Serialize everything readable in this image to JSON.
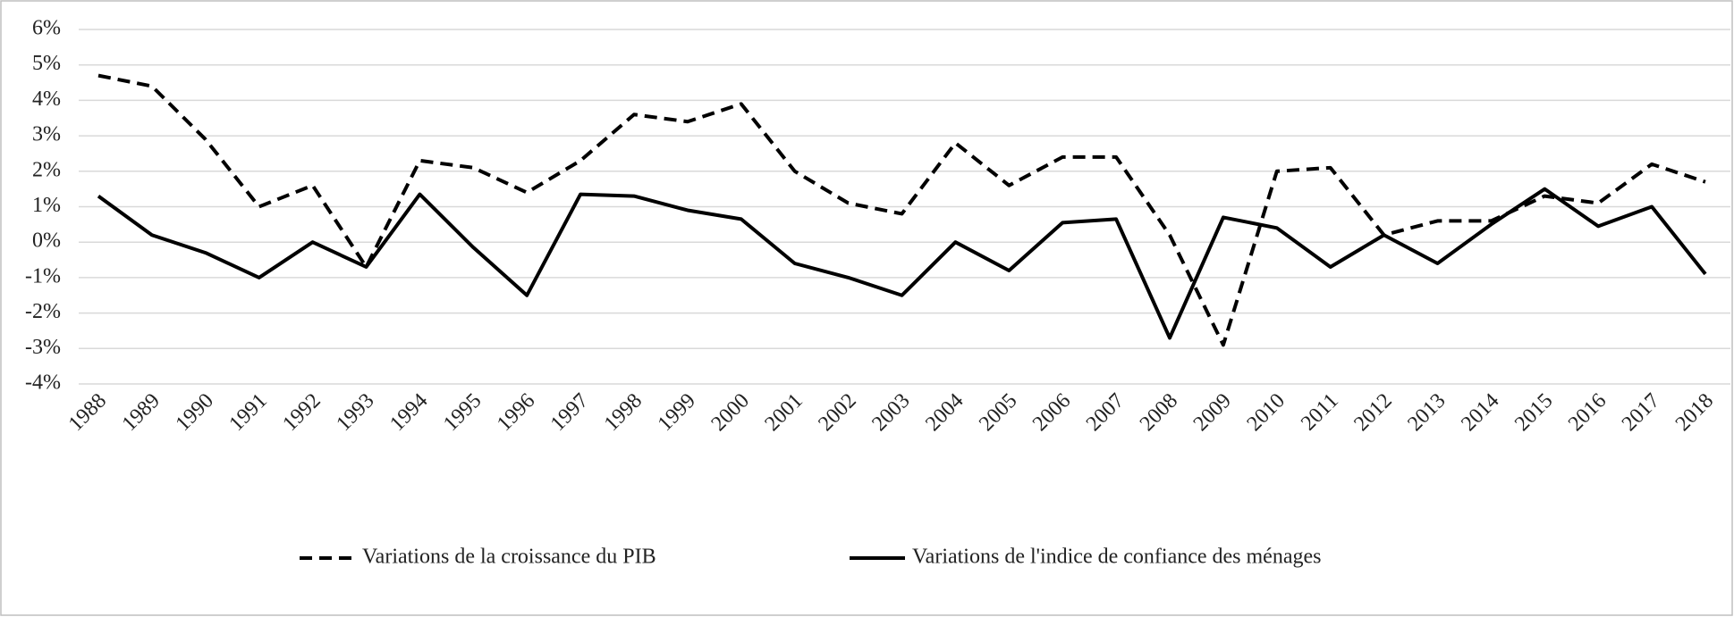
{
  "chart_data": {
    "type": "line",
    "categories": [
      "1988",
      "1989",
      "1990",
      "1991",
      "1992",
      "1993",
      "1994",
      "1995",
      "1996",
      "1997",
      "1998",
      "1999",
      "2000",
      "2001",
      "2002",
      "2003",
      "2004",
      "2005",
      "2006",
      "2007",
      "2008",
      "2009",
      "2010",
      "2011",
      "2012",
      "2013",
      "2014",
      "2015",
      "2016",
      "2017",
      "2018"
    ],
    "series": [
      {
        "name": "Variations de la croissance du PIB",
        "color": "#000000",
        "line_style": "dashed",
        "values": [
          4.7,
          4.4,
          2.9,
          1.0,
          1.6,
          -0.7,
          2.3,
          2.1,
          1.4,
          2.3,
          3.6,
          3.4,
          3.9,
          2.0,
          1.1,
          0.8,
          2.8,
          1.6,
          2.4,
          2.4,
          0.2,
          -2.9,
          2.0,
          2.1,
          0.2,
          0.6,
          0.6,
          1.3,
          1.1,
          2.2,
          1.7
        ]
      },
      {
        "name": "Variations de l'indice de confiance des ménages",
        "color": "#000000",
        "line_style": "solid",
        "values": [
          1.3,
          0.2,
          -0.3,
          -1.0,
          0.0,
          -0.7,
          1.35,
          -0.15,
          -1.5,
          1.35,
          1.3,
          0.9,
          0.65,
          -0.6,
          -1.0,
          -1.5,
          0.0,
          -0.8,
          0.55,
          0.65,
          -2.7,
          0.7,
          0.4,
          -0.7,
          0.2,
          -0.6,
          0.5,
          1.5,
          0.45,
          1.0,
          -0.9
        ]
      }
    ],
    "ylim": [
      -4,
      6
    ],
    "yticks": [
      {
        "value": -4,
        "label": "-4%"
      },
      {
        "value": -3,
        "label": "-3%"
      },
      {
        "value": -2,
        "label": "-2%"
      },
      {
        "value": -1,
        "label": "-1%"
      },
      {
        "value": 0,
        "label": "0%"
      },
      {
        "value": 1,
        "label": "1%"
      },
      {
        "value": 2,
        "label": "2%"
      },
      {
        "value": 3,
        "label": "3%"
      },
      {
        "value": 4,
        "label": "4%"
      },
      {
        "value": 5,
        "label": "5%"
      },
      {
        "value": 6,
        "label": "6%"
      }
    ],
    "grid": true,
    "legend": "bottom"
  }
}
